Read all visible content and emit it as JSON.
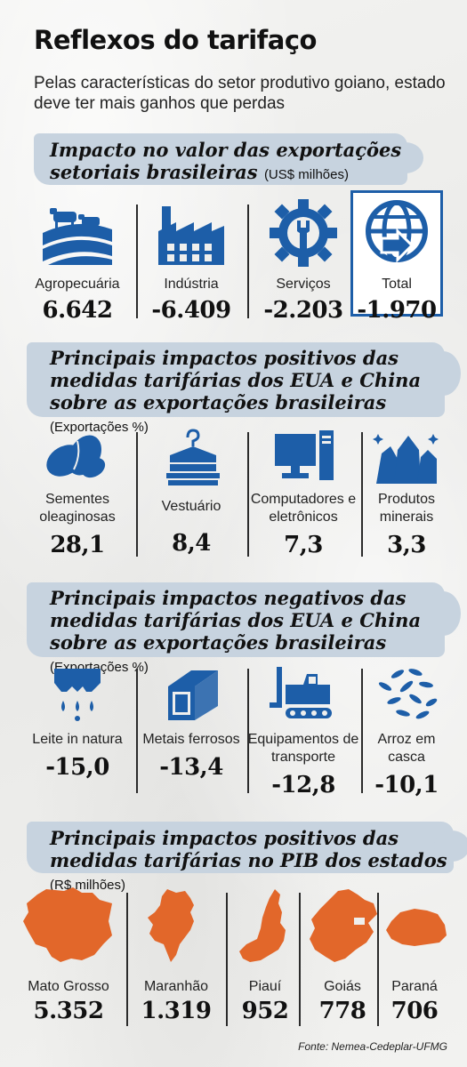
{
  "header": {
    "title": "Reflexos do tarifaço",
    "subtitle": "Pelas características do setor produtivo goiano, estado deve ter mais ganhos que perdas"
  },
  "sections": [
    {
      "title": "Impacto no valor das exportações setoriais brasileiras",
      "unit": "(US$ milhões)",
      "items": [
        {
          "label": "Agropecuária",
          "value": "6.642",
          "icon": "cattle-field-icon"
        },
        {
          "label": "Indústria",
          "value": "-6.409",
          "icon": "factory-icon"
        },
        {
          "label": "Serviços",
          "value": "-2.203",
          "icon": "wrench-gear-icon"
        },
        {
          "label": "Total",
          "value": "-1.970",
          "icon": "globe-arrow-icon"
        }
      ]
    },
    {
      "title": "Principais impactos positivos das medidas tarifárias dos EUA e China sobre as exportações brasileiras",
      "unit": "(Exportações %)",
      "items": [
        {
          "label": "Sementes oleaginosas",
          "value": "28,1",
          "icon": "beans-icon"
        },
        {
          "label": "Vestuário",
          "value": "8,4",
          "icon": "clothes-hanger-icon"
        },
        {
          "label": "Computadores e eletrônicos",
          "value": "7,3",
          "icon": "computer-icon"
        },
        {
          "label": "Produtos minerais",
          "value": "3,3",
          "icon": "crystals-icon"
        }
      ]
    },
    {
      "title": "Principais impactos negativos das medidas tarifárias dos EUA e China sobre as exportações brasileiras",
      "unit": "(Exportações %)",
      "items": [
        {
          "label": "Leite in natura",
          "value": "-15,0",
          "icon": "milk-drops-icon"
        },
        {
          "label": "Metais ferrosos",
          "value": "-13,4",
          "icon": "metal-bar-icon"
        },
        {
          "label": "Equipamentos de transporte",
          "value": "-12,8",
          "icon": "forklift-icon"
        },
        {
          "label": "Arroz em casca",
          "value": "-10,1",
          "icon": "rice-grains-icon"
        }
      ]
    },
    {
      "title": "Principais impactos positivos das medidas tarifárias no PIB dos estados",
      "unit": "(R$ milhões)",
      "items": [
        {
          "label": "Mato Grosso",
          "value": "5.352",
          "icon": "mato-grosso-map-icon"
        },
        {
          "label": "Maranhão",
          "value": "1.319",
          "icon": "maranhao-map-icon"
        },
        {
          "label": "Piauí",
          "value": "952",
          "icon": "piaui-map-icon"
        },
        {
          "label": "Goiás",
          "value": "778",
          "icon": "goias-map-icon"
        },
        {
          "label": "Paraná",
          "value": "706",
          "icon": "parana-map-icon"
        }
      ]
    }
  ],
  "source": "Fonte: Nemea-Cedeplar-UFMG",
  "colors": {
    "icon_blue": "#1d5ea8",
    "map_orange": "#e2672a",
    "band": "#c7d3df"
  }
}
